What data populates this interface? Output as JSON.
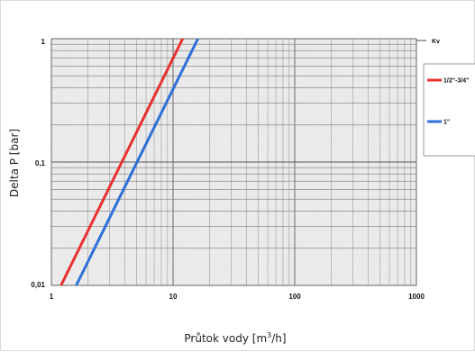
{
  "chart_data": {
    "type": "line",
    "scale": {
      "x": "log",
      "y": "log"
    },
    "xlim": [
      1,
      1000
    ],
    "ylim": [
      0.01,
      1
    ],
    "xlabel_parts": {
      "base": "Průtok vody [m",
      "sup": "3",
      "tail": "/h]"
    },
    "ylabel": "Delta P [bar]",
    "corner_label": "Kv",
    "x_ticks": [
      {
        "value": 1,
        "label": "1"
      },
      {
        "value": 10,
        "label": "10"
      },
      {
        "value": 100,
        "label": "100"
      },
      {
        "value": 1000,
        "label": "1000"
      }
    ],
    "y_ticks": [
      {
        "value": 1,
        "label": "1"
      },
      {
        "value": 0.1,
        "label": "0,1"
      },
      {
        "value": 0.01,
        "label": "0,01"
      }
    ],
    "grid": true,
    "legend_position": "right",
    "series": [
      {
        "name": "1/2\"-3/4\"",
        "color": "#e8312f",
        "points": [
          [
            1.2,
            0.01
          ],
          [
            12,
            1
          ]
        ]
      },
      {
        "name": "1\"",
        "color": "#2f6fd8",
        "points": [
          [
            1.6,
            0.01
          ],
          [
            16,
            1
          ]
        ]
      }
    ]
  }
}
